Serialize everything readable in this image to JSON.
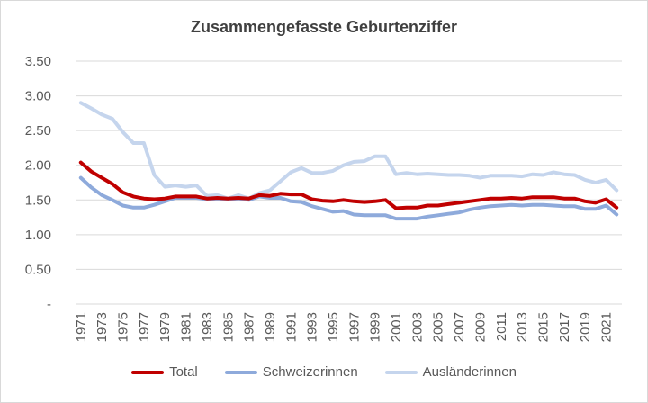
{
  "chart_data": {
    "type": "line",
    "title": "Zusammengefasste Geburtenziffer",
    "xlabel": "",
    "ylabel": "",
    "ylim": [
      0,
      3.5
    ],
    "y_ticks": [
      "-",
      "0.50",
      "1.00",
      "1.50",
      "2.00",
      "2.50",
      "3.00",
      "3.50"
    ],
    "x_tick_labels": [
      "1971",
      "1973",
      "1975",
      "1977",
      "1979",
      "1981",
      "1983",
      "1985",
      "1987",
      "1989",
      "1991",
      "1993",
      "1995",
      "1997",
      "1999",
      "2001",
      "2003",
      "2005",
      "2007",
      "2009",
      "2011",
      "2013",
      "2015",
      "2017",
      "2019",
      "2021"
    ],
    "grid": true,
    "legend_position": "bottom",
    "x": [
      1971,
      1972,
      1973,
      1974,
      1975,
      1976,
      1977,
      1978,
      1979,
      1980,
      1981,
      1982,
      1983,
      1984,
      1985,
      1986,
      1987,
      1988,
      1989,
      1990,
      1991,
      1992,
      1993,
      1994,
      1995,
      1996,
      1997,
      1998,
      1999,
      2000,
      2001,
      2002,
      2003,
      2004,
      2005,
      2006,
      2007,
      2008,
      2009,
      2010,
      2011,
      2012,
      2013,
      2014,
      2015,
      2016,
      2017,
      2018,
      2019,
      2020,
      2021,
      2022
    ],
    "series": [
      {
        "name": "Total",
        "color": "#c00000",
        "values": [
          2.04,
          1.91,
          1.82,
          1.73,
          1.61,
          1.55,
          1.52,
          1.51,
          1.52,
          1.55,
          1.55,
          1.55,
          1.52,
          1.53,
          1.52,
          1.53,
          1.52,
          1.57,
          1.56,
          1.59,
          1.58,
          1.58,
          1.51,
          1.49,
          1.48,
          1.5,
          1.48,
          1.47,
          1.48,
          1.5,
          1.38,
          1.39,
          1.39,
          1.42,
          1.42,
          1.44,
          1.46,
          1.48,
          1.5,
          1.52,
          1.52,
          1.53,
          1.52,
          1.54,
          1.54,
          1.54,
          1.52,
          1.52,
          1.48,
          1.46,
          1.51,
          1.39
        ]
      },
      {
        "name": "Schweizerinnen",
        "color": "#8eaadb",
        "values": [
          1.82,
          1.68,
          1.57,
          1.5,
          1.42,
          1.39,
          1.39,
          1.43,
          1.48,
          1.53,
          1.53,
          1.53,
          1.51,
          1.52,
          1.51,
          1.52,
          1.5,
          1.55,
          1.53,
          1.53,
          1.48,
          1.47,
          1.41,
          1.37,
          1.33,
          1.34,
          1.29,
          1.28,
          1.28,
          1.28,
          1.23,
          1.23,
          1.23,
          1.26,
          1.28,
          1.3,
          1.32,
          1.36,
          1.39,
          1.41,
          1.42,
          1.43,
          1.42,
          1.43,
          1.43,
          1.42,
          1.41,
          1.41,
          1.37,
          1.37,
          1.42,
          1.29
        ]
      },
      {
        "name": "Ausländerinnen",
        "color": "#c5d5ed",
        "values": [
          2.9,
          2.82,
          2.73,
          2.67,
          2.48,
          2.32,
          2.32,
          1.86,
          1.69,
          1.71,
          1.69,
          1.71,
          1.56,
          1.57,
          1.52,
          1.57,
          1.52,
          1.6,
          1.64,
          1.77,
          1.9,
          1.96,
          1.89,
          1.89,
          1.92,
          2.0,
          2.05,
          2.06,
          2.13,
          2.13,
          1.87,
          1.89,
          1.87,
          1.88,
          1.87,
          1.86,
          1.86,
          1.85,
          1.82,
          1.85,
          1.85,
          1.85,
          1.84,
          1.87,
          1.86,
          1.9,
          1.87,
          1.86,
          1.79,
          1.75,
          1.79,
          1.64
        ]
      }
    ]
  }
}
